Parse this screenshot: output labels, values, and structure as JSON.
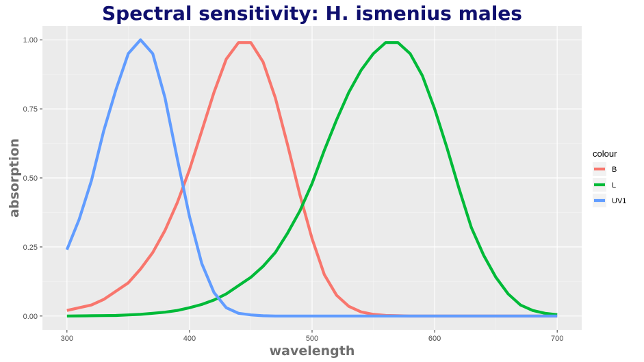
{
  "chart_data": {
    "type": "line",
    "title": "Spectral sensitivity: H. ismenius males",
    "xlabel": "wavelength",
    "ylabel": "absorption",
    "xlim": [
      280,
      720
    ],
    "ylim": [
      -0.05,
      1.05
    ],
    "x_ticks": [
      300,
      400,
      500,
      600,
      700
    ],
    "y_ticks": [
      0.0,
      0.25,
      0.5,
      0.75,
      1.0
    ],
    "x_tick_labels": [
      "300",
      "400",
      "500",
      "600",
      "700"
    ],
    "y_tick_labels": [
      "0.00",
      "0.25",
      "0.50",
      "0.75",
      "1.00"
    ],
    "grid": true,
    "legend": {
      "title": "colour",
      "position": "right"
    },
    "x": [
      300,
      310,
      320,
      330,
      340,
      350,
      360,
      370,
      380,
      390,
      400,
      410,
      420,
      430,
      440,
      450,
      460,
      470,
      480,
      490,
      500,
      510,
      520,
      530,
      540,
      550,
      560,
      570,
      580,
      590,
      600,
      610,
      620,
      630,
      640,
      650,
      660,
      670,
      680,
      690,
      700
    ],
    "series": [
      {
        "name": "B",
        "color": "#f8766d",
        "values": [
          0.02,
          0.03,
          0.04,
          0.06,
          0.09,
          0.12,
          0.17,
          0.23,
          0.31,
          0.41,
          0.53,
          0.67,
          0.81,
          0.93,
          0.99,
          0.99,
          0.92,
          0.79,
          0.62,
          0.44,
          0.28,
          0.15,
          0.075,
          0.035,
          0.015,
          0.006,
          0.002,
          0.001,
          0,
          0,
          0,
          0,
          0,
          0,
          0,
          0,
          0,
          0,
          0,
          0,
          0
        ]
      },
      {
        "name": "L",
        "color": "#00ba38",
        "values": [
          0.0,
          0.0005,
          0.001,
          0.0015,
          0.002,
          0.004,
          0.006,
          0.01,
          0.014,
          0.02,
          0.03,
          0.042,
          0.058,
          0.08,
          0.11,
          0.14,
          0.18,
          0.23,
          0.3,
          0.38,
          0.48,
          0.6,
          0.71,
          0.81,
          0.89,
          0.95,
          0.99,
          0.99,
          0.95,
          0.87,
          0.75,
          0.61,
          0.46,
          0.32,
          0.22,
          0.14,
          0.08,
          0.04,
          0.02,
          0.01,
          0.005
        ]
      },
      {
        "name": "UV1",
        "color": "#619cff",
        "values": [
          0.24,
          0.35,
          0.49,
          0.67,
          0.82,
          0.95,
          1.0,
          0.95,
          0.79,
          0.57,
          0.36,
          0.19,
          0.085,
          0.03,
          0.01,
          0.004,
          0.001,
          0,
          0,
          0,
          0,
          0,
          0,
          0,
          0,
          0,
          0,
          0,
          0,
          0,
          0,
          0,
          0,
          0,
          0,
          0,
          0,
          0,
          0,
          0,
          0
        ]
      }
    ]
  }
}
